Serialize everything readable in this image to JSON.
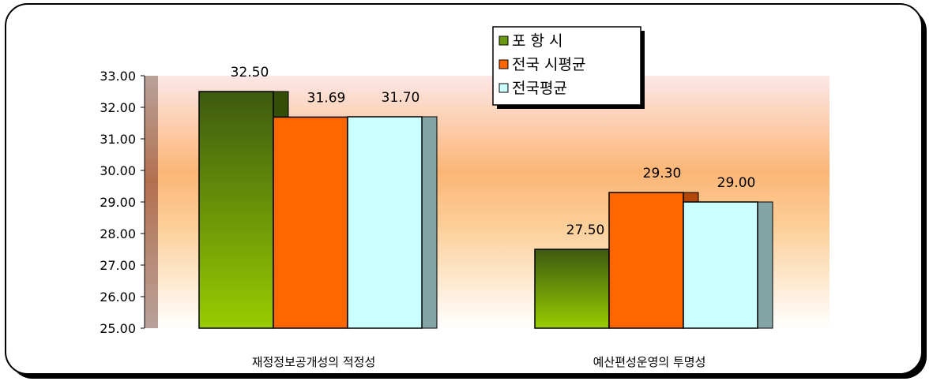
{
  "chart_data": {
    "type": "bar",
    "categories": [
      "재정정보공개성의 적정성",
      "예산편성운영의 투명성"
    ],
    "series": [
      {
        "name": "포 항 시",
        "values": [
          32.5,
          27.5
        ],
        "value_labels": [
          "32.50",
          "27.50"
        ],
        "color": "#6a9a10"
      },
      {
        "name": "전국 시평균",
        "values": [
          31.69,
          29.3
        ],
        "value_labels": [
          "31.69",
          "29.30"
        ],
        "color": "#ff6600"
      },
      {
        "name": "전국평균",
        "values": [
          31.7,
          29.0
        ],
        "value_labels": [
          "31.70",
          "29.00"
        ],
        "color": "#ccffff"
      }
    ],
    "ylim": [
      25,
      33
    ],
    "yticks": [
      "25.00",
      "26.00",
      "27.00",
      "28.00",
      "29.00",
      "30.00",
      "31.00",
      "32.00",
      "33.00"
    ],
    "legend_position": "top-center",
    "grid": false,
    "three_d": true
  }
}
